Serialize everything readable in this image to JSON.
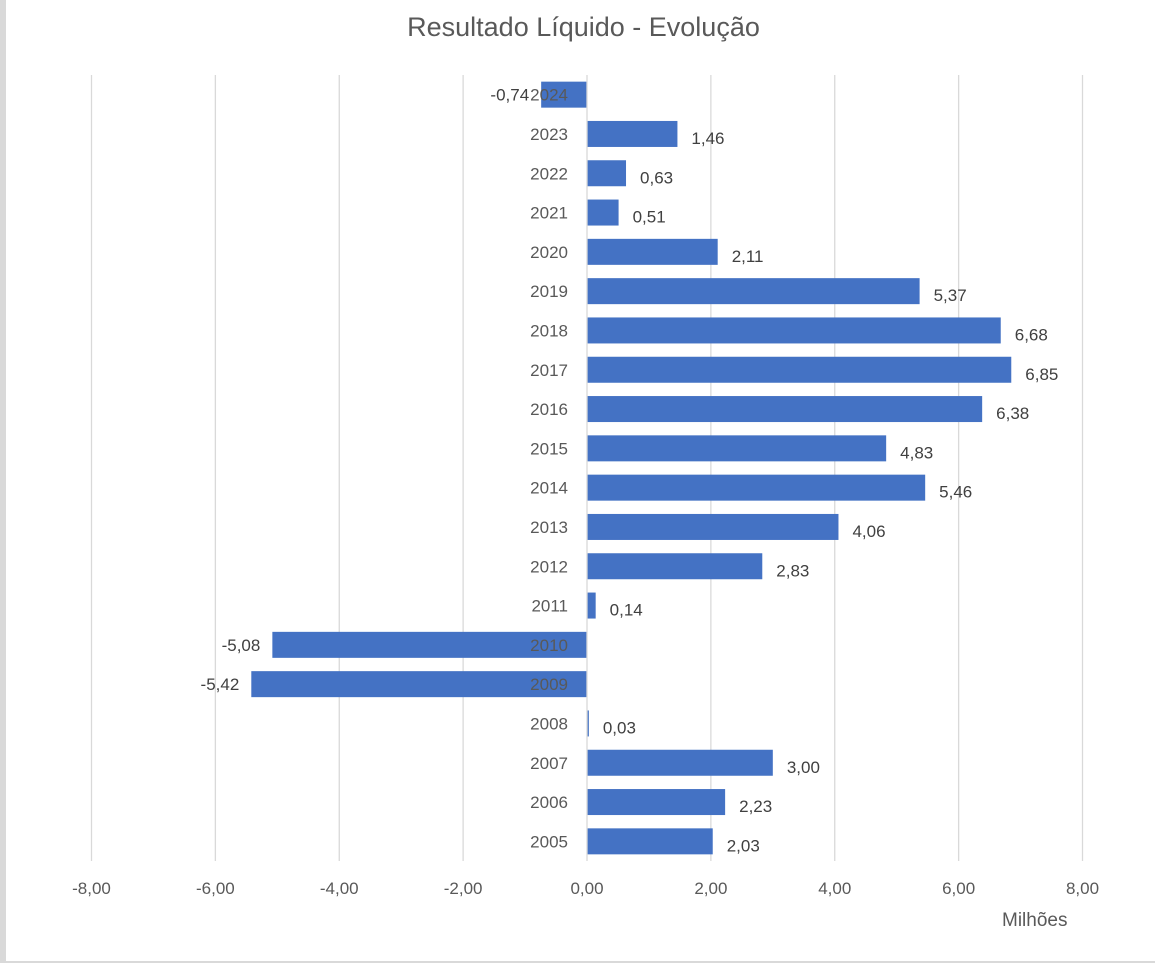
{
  "chart_data": {
    "type": "bar",
    "orientation": "horizontal",
    "title": "Resultado Líquido - Evolução",
    "units_label": "Milhões",
    "xlim": [
      -8,
      8
    ],
    "x_ticks": [
      -8,
      -6,
      -4,
      -2,
      0,
      2,
      4,
      6,
      8
    ],
    "x_tick_labels": [
      "-8,00",
      "-6,00",
      "-4,00",
      "-2,00",
      "0,00",
      "2,00",
      "4,00",
      "6,00",
      "8,00"
    ],
    "grid": "vertical",
    "bar_color": "#4472C4",
    "categories": [
      "2024",
      "2023",
      "2022",
      "2021",
      "2020",
      "2019",
      "2018",
      "2017",
      "2016",
      "2015",
      "2014",
      "2013",
      "2012",
      "2011",
      "2010",
      "2009",
      "2008",
      "2007",
      "2006",
      "2005"
    ],
    "values": [
      -0.74,
      1.46,
      0.63,
      0.51,
      2.11,
      5.37,
      6.68,
      6.85,
      6.38,
      4.83,
      5.46,
      4.06,
      2.83,
      0.14,
      -5.08,
      -5.42,
      0.03,
      3.0,
      2.23,
      2.03
    ],
    "data_labels": [
      "-0,74",
      "1,46",
      "0,63",
      "0,51",
      "2,11",
      "5,37",
      "6,68",
      "6,85",
      "6,38",
      "4,83",
      "5,46",
      "4,06",
      "2,83",
      "0,14",
      "-5,08",
      "-5,42",
      "0,03",
      "3,00",
      "2,23",
      "2,03"
    ]
  }
}
